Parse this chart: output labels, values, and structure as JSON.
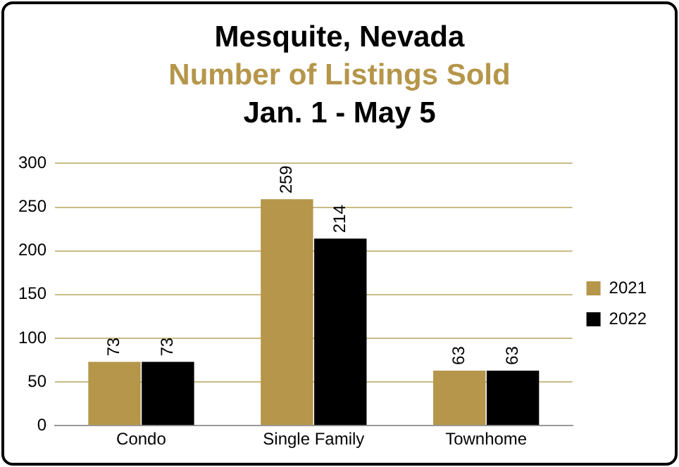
{
  "chart_data": {
    "type": "bar",
    "title": "Mesquite, Nevada",
    "subtitle": "Number of Listings Sold",
    "annotations": [
      "Jan. 1 - May 5"
    ],
    "categories": [
      "Condo",
      "Single Family",
      "Townhome"
    ],
    "series": [
      {
        "name": "2021",
        "color": "#b5964a",
        "values": [
          73,
          259,
          63
        ]
      },
      {
        "name": "2022",
        "color": "#000000",
        "values": [
          73,
          214,
          63
        ]
      }
    ],
    "ylim": [
      0,
      300
    ],
    "yticks": [
      0,
      50,
      100,
      150,
      200,
      250,
      300
    ],
    "grid": "y",
    "legend": "right",
    "data_labels": true
  }
}
